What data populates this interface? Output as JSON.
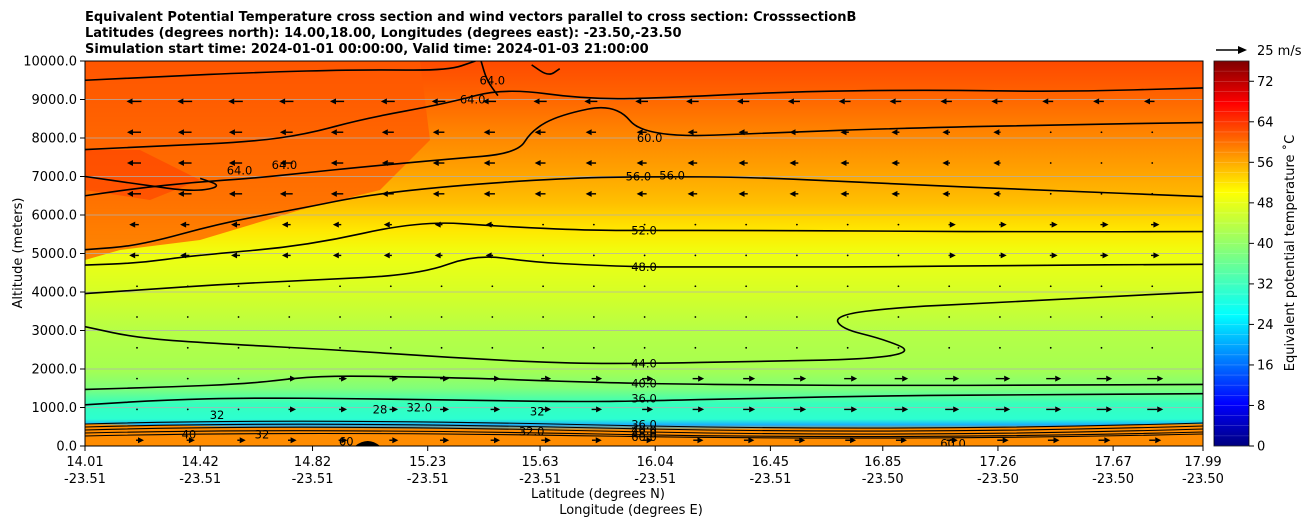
{
  "chart_data": {
    "type": "contourf",
    "title_lines": [
      "Equivalent Potential Temperature cross section and wind vectors parallel to cross section: CrosssectionB",
      "Latitudes (degrees north): 14.00,18.00, Longitudes (degrees east): -23.50,-23.50",
      "Simulation start time: 2024-01-01 00:00:00, Valid time: 2024-01-03 21:00:00"
    ],
    "xlabel": "Latitude (degrees N)",
    "xlabel2": "Longitude (degrees E)",
    "ylabel": "Altitude (meters)",
    "ylim": [
      0,
      10000
    ],
    "xlim": [
      14.01,
      17.99
    ],
    "y_ticks": [
      "0.0",
      "1000.0",
      "2000.0",
      "3000.0",
      "4000.0",
      "5000.0",
      "6000.0",
      "7000.0",
      "8000.0",
      "9000.0",
      "10000.0"
    ],
    "x_ticks": [
      {
        "lat": "14.01",
        "lon": "-23.51",
        "pos": 14.01
      },
      {
        "lat": "14.42",
        "lon": "-23.51",
        "pos": 14.42
      },
      {
        "lat": "14.82",
        "lon": "-23.51",
        "pos": 14.82
      },
      {
        "lat": "15.23",
        "lon": "-23.51",
        "pos": 15.23
      },
      {
        "lat": "15.63",
        "lon": "-23.51",
        "pos": 15.63
      },
      {
        "lat": "16.04",
        "lon": "-23.51",
        "pos": 16.04
      },
      {
        "lat": "16.45",
        "lon": "-23.51",
        "pos": 16.45
      },
      {
        "lat": "16.85",
        "lon": "-23.50",
        "pos": 16.85
      },
      {
        "lat": "17.26",
        "lon": "-23.50",
        "pos": 17.26
      },
      {
        "lat": "17.67",
        "lon": "-23.50",
        "pos": 17.67
      },
      {
        "lat": "17.99",
        "lon": "-23.50",
        "pos": 17.99
      }
    ],
    "colorbar": {
      "label": "Equivalent potential temperature ˚C",
      "vmin": 0,
      "vmax": 76,
      "levels_step": 2,
      "ticks": [
        "0",
        "8",
        "16",
        "24",
        "32",
        "40",
        "48",
        "56",
        "64",
        "72"
      ]
    },
    "quiver_key": {
      "label": "25 m/s"
    },
    "contour_labels": [
      {
        "text": "60.0",
        "x": 16.02,
        "y": 8000
      },
      {
        "text": "56.0",
        "x": 15.98,
        "y": 7000
      },
      {
        "text": "56.0",
        "x": 16.1,
        "y": 7020
      },
      {
        "text": "52.0",
        "x": 16.0,
        "y": 5600
      },
      {
        "text": "48.0",
        "x": 16.0,
        "y": 4650
      },
      {
        "text": "44.0",
        "x": 16.0,
        "y": 2140
      },
      {
        "text": "40.0",
        "x": 16.0,
        "y": 1620
      },
      {
        "text": "36.0",
        "x": 16.0,
        "y": 1240
      },
      {
        "text": "32.0",
        "x": 15.2,
        "y": 1000
      },
      {
        "text": "36.0",
        "x": 16.0,
        "y": 560
      },
      {
        "text": "40.0",
        "x": 16.0,
        "y": 420
      },
      {
        "text": "48.0",
        "x": 16.0,
        "y": 320
      },
      {
        "text": "60.0",
        "x": 16.0,
        "y": 240
      },
      {
        "text": "60.0",
        "x": 17.1,
        "y": 60
      },
      {
        "text": "64.0",
        "x": 15.46,
        "y": 9500
      },
      {
        "text": "64.0",
        "x": 15.39,
        "y": 9000
      },
      {
        "text": "64.0",
        "x": 14.72,
        "y": 7300
      },
      {
        "text": "64.0",
        "x": 14.56,
        "y": 7150
      },
      {
        "text": "32",
        "x": 14.48,
        "y": 800
      },
      {
        "text": "32",
        "x": 15.62,
        "y": 900
      },
      {
        "text": "32.0",
        "x": 15.6,
        "y": 380
      },
      {
        "text": "40",
        "x": 14.38,
        "y": 300
      },
      {
        "text": "32",
        "x": 14.64,
        "y": 300
      },
      {
        "text": "60",
        "x": 14.94,
        "y": 120
      },
      {
        "text": "28",
        "x": 15.06,
        "y": 950
      }
    ],
    "contour_lines": [
      {
        "level": 36,
        "points": [
          [
            14.01,
            1070
          ],
          [
            14.3,
            1200
          ],
          [
            14.6,
            1250
          ],
          [
            15.0,
            1230
          ],
          [
            15.4,
            1180
          ],
          [
            15.8,
            1150
          ],
          [
            16.0,
            1170
          ],
          [
            16.4,
            1240
          ],
          [
            16.9,
            1310
          ],
          [
            17.4,
            1330
          ],
          [
            17.99,
            1360
          ]
        ]
      },
      {
        "level": 40,
        "points": [
          [
            14.01,
            1470
          ],
          [
            14.3,
            1530
          ],
          [
            14.6,
            1620
          ],
          [
            14.8,
            1800
          ],
          [
            15.0,
            1820
          ],
          [
            15.4,
            1760
          ],
          [
            15.7,
            1680
          ],
          [
            16.0,
            1620
          ],
          [
            16.5,
            1580
          ],
          [
            16.9,
            1570
          ],
          [
            17.4,
            1580
          ],
          [
            17.99,
            1600
          ]
        ]
      },
      {
        "level": 44,
        "points": [
          [
            14.01,
            3100
          ],
          [
            14.2,
            2800
          ],
          [
            14.5,
            2650
          ],
          [
            14.9,
            2500
          ],
          [
            15.3,
            2300
          ],
          [
            15.7,
            2150
          ],
          [
            16.0,
            2140
          ],
          [
            16.4,
            2200
          ],
          [
            16.8,
            2250
          ],
          [
            16.96,
            2450
          ],
          [
            16.85,
            2780
          ],
          [
            16.7,
            3050
          ],
          [
            16.68,
            3400
          ],
          [
            16.9,
            3600
          ],
          [
            17.2,
            3700
          ],
          [
            17.6,
            3860
          ],
          [
            17.99,
            4000
          ]
        ]
      },
      {
        "level": 48,
        "points": [
          [
            14.01,
            3960
          ],
          [
            14.2,
            4050
          ],
          [
            14.5,
            4200
          ],
          [
            14.8,
            4300
          ],
          [
            15.2,
            4450
          ],
          [
            15.4,
            4980
          ],
          [
            15.6,
            4780
          ],
          [
            15.8,
            4700
          ],
          [
            16.0,
            4650
          ],
          [
            16.3,
            4650
          ],
          [
            16.8,
            4650
          ],
          [
            17.3,
            4690
          ],
          [
            17.99,
            4720
          ]
        ]
      },
      {
        "level": 52,
        "points": [
          [
            14.01,
            4700
          ],
          [
            14.2,
            4750
          ],
          [
            14.4,
            4950
          ],
          [
            14.8,
            5200
          ],
          [
            15.2,
            5850
          ],
          [
            15.5,
            5700
          ],
          [
            15.8,
            5600
          ],
          [
            16.0,
            5600
          ],
          [
            16.4,
            5600
          ],
          [
            16.9,
            5580
          ],
          [
            17.4,
            5560
          ],
          [
            17.99,
            5570
          ]
        ]
      },
      {
        "level": 56,
        "points": [
          [
            14.01,
            5100
          ],
          [
            14.2,
            5200
          ],
          [
            14.5,
            5800
          ],
          [
            14.8,
            6200
          ],
          [
            15.0,
            6500
          ],
          [
            15.3,
            6750
          ],
          [
            15.7,
            6950
          ],
          [
            16.0,
            7000
          ],
          [
            16.4,
            6980
          ],
          [
            16.9,
            6800
          ],
          [
            17.4,
            6650
          ],
          [
            17.99,
            6480
          ]
        ]
      },
      {
        "level": 60,
        "points": [
          [
            14.01,
            6500
          ],
          [
            14.2,
            6700
          ],
          [
            14.4,
            6850
          ],
          [
            14.6,
            6950
          ],
          [
            14.8,
            7100
          ],
          [
            15.0,
            7250
          ],
          [
            15.3,
            7450
          ],
          [
            15.55,
            7600
          ],
          [
            15.6,
            8200
          ],
          [
            15.7,
            8600
          ],
          [
            15.9,
            8900
          ],
          [
            16.0,
            8000
          ],
          [
            16.5,
            8150
          ],
          [
            16.9,
            8250
          ],
          [
            17.5,
            8350
          ],
          [
            17.99,
            8400
          ]
        ]
      },
      {
        "level": 64,
        "points": [
          [
            14.01,
            7700
          ],
          [
            14.3,
            7800
          ],
          [
            14.6,
            7900
          ],
          [
            14.8,
            8100
          ],
          [
            15.0,
            8500
          ],
          [
            15.3,
            8900
          ],
          [
            15.5,
            9300
          ],
          [
            15.8,
            9000
          ],
          [
            16.1,
            9050
          ],
          [
            16.5,
            9200
          ],
          [
            17.0,
            9250
          ],
          [
            17.5,
            9200
          ],
          [
            17.99,
            9300
          ]
        ]
      },
      {
        "level": 64.5,
        "points": [
          [
            14.01,
            9500
          ],
          [
            14.3,
            9600
          ],
          [
            14.6,
            9700
          ],
          [
            15.0,
            9780
          ],
          [
            15.3,
            9750
          ],
          [
            15.4,
            10000
          ]
        ]
      },
      {
        "level": 64.6,
        "points": [
          [
            15.42,
            10000
          ],
          [
            15.44,
            9500
          ],
          [
            15.48,
            9100
          ]
        ]
      },
      {
        "level": 64.7,
        "points": [
          [
            15.6,
            9900
          ],
          [
            15.66,
            9600
          ],
          [
            15.7,
            9800
          ]
        ]
      },
      {
        "level": 64.8,
        "points": [
          [
            14.01,
            7000
          ],
          [
            14.2,
            6800
          ],
          [
            14.4,
            6600
          ],
          [
            14.5,
            6750
          ],
          [
            14.42,
            6950
          ]
        ]
      }
    ]
  }
}
